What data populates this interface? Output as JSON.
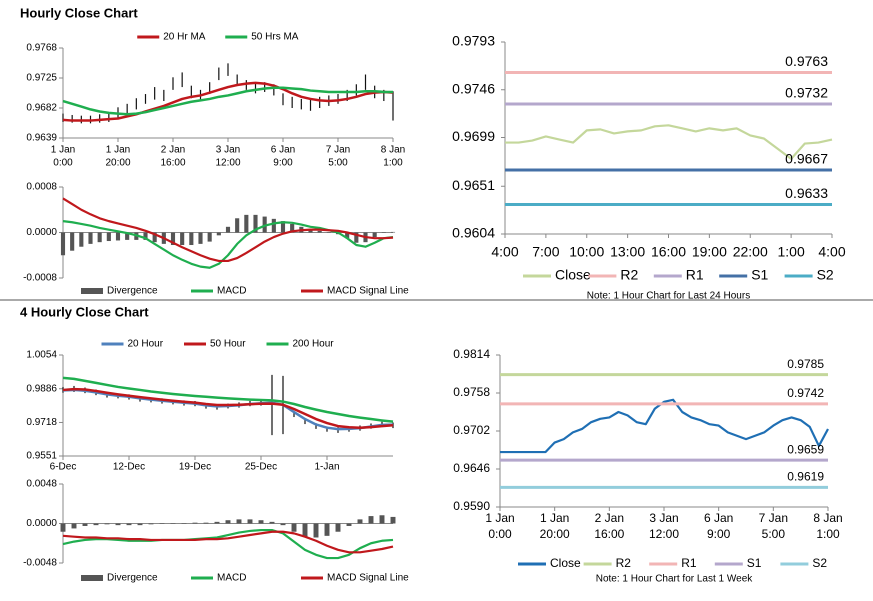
{
  "chart_data": [
    {
      "type": "price",
      "title": "Hourly Close Chart",
      "ylim": [
        0.9639,
        0.9768
      ],
      "yticks": [
        0.9639,
        0.9682,
        0.9725,
        0.9768
      ],
      "categories": [
        [
          "1 Jan",
          "0:00"
        ],
        null,
        null,
        null,
        null,
        null,
        [
          "1 Jan",
          "20:00"
        ],
        null,
        null,
        null,
        null,
        null,
        [
          "2 Jan",
          "16:00"
        ],
        null,
        null,
        null,
        null,
        null,
        [
          "3 Jan",
          "12:00"
        ],
        null,
        null,
        null,
        null,
        null,
        [
          "6 Jan",
          "9:00"
        ],
        null,
        null,
        null,
        null,
        null,
        [
          "7 Jan",
          "5:00"
        ],
        null,
        null,
        null,
        null,
        null,
        [
          "8 Jan",
          "1:00"
        ]
      ],
      "high": [
        0.9674,
        0.9672,
        0.9671,
        0.9671,
        0.9673,
        0.9674,
        0.9683,
        0.9688,
        0.9696,
        0.9702,
        0.9712,
        0.9708,
        0.9726,
        0.9733,
        0.9714,
        0.9708,
        0.9719,
        0.974,
        0.9746,
        0.973,
        0.9722,
        0.9718,
        0.9719,
        0.9716,
        0.9703,
        0.9698,
        0.9695,
        0.9694,
        0.9698,
        0.97,
        0.9702,
        0.9708,
        0.9716,
        0.973,
        0.9714,
        0.9708,
        0.9706
      ],
      "low": [
        0.9662,
        0.9661,
        0.966,
        0.966,
        0.9661,
        0.9662,
        0.9668,
        0.9672,
        0.968,
        0.9688,
        0.9694,
        0.9692,
        0.9708,
        0.9712,
        0.9696,
        0.9692,
        0.9702,
        0.9722,
        0.9728,
        0.9714,
        0.9708,
        0.9703,
        0.9705,
        0.97,
        0.9686,
        0.9682,
        0.968,
        0.9678,
        0.9682,
        0.9685,
        0.9688,
        0.9692,
        0.97,
        0.9708,
        0.9696,
        0.9692,
        0.9664
      ],
      "series": [
        {
          "name": "20 Hr MA",
          "color": "#c0181c",
          "values": [
            0.9665,
            0.9664,
            0.9664,
            0.9664,
            0.9665,
            0.9666,
            0.9667,
            0.967,
            0.9673,
            0.9677,
            0.9681,
            0.9685,
            0.969,
            0.9695,
            0.9698,
            0.97,
            0.9704,
            0.9708,
            0.9712,
            0.9715,
            0.9717,
            0.9718,
            0.9717,
            0.9714,
            0.9709,
            0.9703,
            0.9698,
            0.9695,
            0.9693,
            0.9692,
            0.9693,
            0.9695,
            0.9698,
            0.9702,
            0.9704,
            0.9705,
            0.9704
          ]
        },
        {
          "name": "50 Hrs MA",
          "color": "#1fae4f",
          "values": [
            0.9692,
            0.9688,
            0.9684,
            0.968,
            0.9677,
            0.9675,
            0.9674,
            0.9673,
            0.9674,
            0.9676,
            0.9679,
            0.9682,
            0.9685,
            0.9688,
            0.9691,
            0.9693,
            0.9695,
            0.9698,
            0.97,
            0.9703,
            0.9706,
            0.9708,
            0.971,
            0.9711,
            0.9711,
            0.971,
            0.9709,
            0.9707,
            0.9706,
            0.9705,
            0.9705,
            0.9705,
            0.9705,
            0.9706,
            0.9706,
            0.9705,
            0.9705
          ]
        }
      ]
    },
    {
      "type": "macd",
      "ylim": [
        -0.0008,
        0.0008
      ],
      "yticks": [
        -0.0008,
        {
          "value": 0,
          "label": "0.0000"
        },
        0.0008
      ],
      "series": [
        {
          "name": "Divergence",
          "color": "#555555",
          "style": "bar",
          "values": [
            -0.0004,
            -0.00032,
            -0.00025,
            -0.0002,
            -0.00017,
            -0.00015,
            -0.00014,
            -0.00013,
            -0.00013,
            -0.00013,
            -0.00017,
            -0.0002,
            -0.00022,
            -0.00022,
            -0.00022,
            -0.0002,
            -0.00016,
            -5e-05,
            0.0001,
            0.00025,
            0.00031,
            0.00031,
            0.00028,
            0.00024,
            0.0002,
            0.00015,
            0.0001,
            5e-05,
            3e-05,
            0,
            -3e-05,
            -0.0001,
            -0.00018,
            -0.00017,
            -8e-05,
            0,
            1e-05
          ]
        },
        {
          "name": "MACD",
          "color": "#1fae4f",
          "values": [
            0.0002,
            0.00018,
            0.00015,
            0.00012,
            8e-05,
            5e-05,
            2e-05,
            -1e-05,
            -5e-05,
            -0.0001,
            -0.0002,
            -0.0003,
            -0.0004,
            -0.00048,
            -0.00055,
            -0.0006,
            -0.00062,
            -0.00055,
            -0.0004,
            -0.0002,
            -5e-05,
            5e-05,
            0.00012,
            0.00016,
            0.00018,
            0.00017,
            0.00014,
            0.0001,
            8e-05,
            4e-05,
            0,
            -0.0001,
            -0.00022,
            -0.00025,
            -0.00018,
            -0.0001,
            -8e-05
          ]
        },
        {
          "name": "MACD Signal Line",
          "color": "#c0181c",
          "values": [
            0.0006,
            0.0005,
            0.0004,
            0.00032,
            0.00025,
            0.0002,
            0.00016,
            0.00012,
            8e-05,
            3e-05,
            -3e-05,
            -0.0001,
            -0.00018,
            -0.00026,
            -0.00033,
            -0.0004,
            -0.00046,
            -0.0005,
            -0.0005,
            -0.00045,
            -0.00036,
            -0.00026,
            -0.00016,
            -8e-05,
            -2e-05,
            2e-05,
            4e-05,
            5e-05,
            5e-05,
            4e-05,
            3e-05,
            0,
            -4e-05,
            -8e-05,
            -0.0001,
            -0.0001,
            -9e-05
          ]
        }
      ]
    },
    {
      "type": "levels",
      "ylim": [
        0.9604,
        0.9793
      ],
      "yticks": [
        0.9604,
        0.9651,
        0.9699,
        0.9746,
        0.9793
      ],
      "categories": [
        "4:00",
        null,
        null,
        "7:00",
        null,
        null,
        "10:00",
        null,
        null,
        "13:00",
        null,
        null,
        "16:00",
        null,
        null,
        "19:00",
        null,
        null,
        "22:00",
        null,
        null,
        "1:00",
        null,
        null,
        "4:00"
      ],
      "series": [
        {
          "name": "Close",
          "color": "#c4d79b",
          "values": [
            0.9694,
            0.9694,
            0.9696,
            0.97,
            0.9697,
            0.9694,
            0.9706,
            0.9707,
            0.9703,
            0.9705,
            0.9706,
            0.971,
            0.9711,
            0.9708,
            0.9705,
            0.9708,
            0.9706,
            0.9708,
            0.9701,
            0.9698,
            0.9688,
            0.9678,
            0.9693,
            0.9694,
            0.9697
          ]
        }
      ],
      "levels": [
        {
          "name": "R2",
          "color": "#f2b5b5",
          "value": 0.9763
        },
        {
          "name": "R1",
          "color": "#b4a7cc",
          "value": 0.9732
        },
        {
          "name": "S1",
          "color": "#4470a6",
          "value": 0.9667
        },
        {
          "name": "S2",
          "color": "#4bacc6",
          "value": 0.9633
        }
      ],
      "note": "Note: 1 Hour Chart for Last 24 Hours"
    },
    {
      "type": "price",
      "title": "4 Hourly Close Chart",
      "ylim": [
        0.9551,
        1.0054
      ],
      "yticks": [
        0.9551,
        0.9718,
        0.9886,
        1.0054
      ],
      "categories": [
        "6-Dec",
        null,
        null,
        null,
        null,
        null,
        "12-Dec",
        null,
        null,
        null,
        null,
        null,
        "19-Dec",
        null,
        null,
        null,
        null,
        null,
        "25-Dec",
        null,
        null,
        null,
        null,
        null,
        "1-Jan",
        null,
        null,
        null,
        null,
        null,
        null
      ],
      "high": [
        0.9895,
        0.99,
        0.9892,
        0.9882,
        0.9868,
        0.9862,
        0.9858,
        0.9848,
        0.9842,
        0.9838,
        0.9832,
        0.9828,
        0.9825,
        0.9813,
        0.9808,
        0.9812,
        0.9818,
        0.9825,
        0.9828,
        0.9955,
        0.995,
        0.9775,
        0.974,
        0.9714,
        0.9698,
        0.9694,
        0.9698,
        0.9703,
        0.9713,
        0.9722,
        0.9718
      ],
      "low": [
        0.9866,
        0.987,
        0.9864,
        0.9854,
        0.9842,
        0.9838,
        0.9832,
        0.9822,
        0.9818,
        0.9812,
        0.9808,
        0.9802,
        0.9799,
        0.9787,
        0.9782,
        0.9788,
        0.9792,
        0.9799,
        0.9802,
        0.9655,
        0.966,
        0.9745,
        0.971,
        0.9686,
        0.9672,
        0.9666,
        0.9672,
        0.9677,
        0.9687,
        0.9698,
        0.969
      ],
      "series": [
        {
          "name": "20 Hour",
          "color": "#4f81bd",
          "values": [
            0.9878,
            0.988,
            0.9876,
            0.9868,
            0.9858,
            0.9851,
            0.9846,
            0.9838,
            0.9832,
            0.9826,
            0.9821,
            0.9816,
            0.9812,
            0.9803,
            0.9798,
            0.98,
            0.9804,
            0.981,
            0.9814,
            0.9816,
            0.9806,
            0.977,
            0.9735,
            0.9708,
            0.9692,
            0.9685,
            0.9686,
            0.969,
            0.9698,
            0.9706,
            0.9707
          ]
        },
        {
          "name": "50 Hour",
          "color": "#c0181c",
          "values": [
            0.988,
            0.9884,
            0.9882,
            0.9875,
            0.9866,
            0.9858,
            0.9851,
            0.9844,
            0.9838,
            0.9832,
            0.9826,
            0.9821,
            0.9817,
            0.981,
            0.9805,
            0.9805,
            0.9806,
            0.9809,
            0.9811,
            0.9812,
            0.9806,
            0.9785,
            0.976,
            0.9735,
            0.9715,
            0.97,
            0.9694,
            0.9692,
            0.9695,
            0.97,
            0.9704
          ]
        },
        {
          "name": "200 Hour",
          "color": "#1fae4f",
          "values": [
            0.994,
            0.9935,
            0.9925,
            0.9915,
            0.9905,
            0.9895,
            0.9887,
            0.988,
            0.9872,
            0.9866,
            0.986,
            0.9855,
            0.985,
            0.9846,
            0.9842,
            0.9838,
            0.9835,
            0.9832,
            0.983,
            0.9828,
            0.9822,
            0.981,
            0.9795,
            0.9782,
            0.977,
            0.976,
            0.975,
            0.9742,
            0.9735,
            0.9728,
            0.9722
          ]
        }
      ]
    },
    {
      "type": "macd",
      "ylim": [
        -0.0048,
        0.0048
      ],
      "yticks": [
        -0.0048,
        {
          "value": 0,
          "label": "0.0000"
        },
        0.0048
      ],
      "series": [
        {
          "name": "Divergence",
          "color": "#555555",
          "style": "bar",
          "values": [
            -0.001,
            -0.0006,
            -0.0003,
            -0.0002,
            -0.0001,
            -0.0002,
            -0.0002,
            -0.0002,
            -0.0001,
            0,
            0,
            0,
            0.0001,
            0.0001,
            0.0002,
            0.0004,
            0.0005,
            0.0005,
            0.0004,
            0.0002,
            -0.0002,
            -0.001,
            -0.0016,
            -0.0017,
            -0.0015,
            -0.001,
            -0.0003,
            0.0005,
            0.0009,
            0.001,
            0.0008
          ]
        },
        {
          "name": "MACD",
          "color": "#1fae4f",
          "values": [
            -0.0025,
            -0.0022,
            -0.002,
            -0.0019,
            -0.0019,
            -0.002,
            -0.0021,
            -0.0021,
            -0.0021,
            -0.002,
            -0.002,
            -0.002,
            -0.0019,
            -0.0018,
            -0.0017,
            -0.0014,
            -0.0011,
            -0.0009,
            -0.0008,
            -0.0008,
            -0.0012,
            -0.0022,
            -0.0032,
            -0.0038,
            -0.0042,
            -0.0042,
            -0.0038,
            -0.003,
            -0.0024,
            -0.0021,
            -0.002
          ]
        },
        {
          "name": "MACD Signal Line",
          "color": "#c0181c",
          "values": [
            -0.0015,
            -0.0016,
            -0.0017,
            -0.0017,
            -0.0018,
            -0.0018,
            -0.0019,
            -0.0019,
            -0.002,
            -0.002,
            -0.002,
            -0.002,
            -0.002,
            -0.0019,
            -0.0019,
            -0.0018,
            -0.0016,
            -0.0014,
            -0.0012,
            -0.001,
            -0.001,
            -0.0012,
            -0.0016,
            -0.0021,
            -0.0027,
            -0.0032,
            -0.0035,
            -0.0035,
            -0.0033,
            -0.0031,
            -0.0028
          ]
        }
      ]
    },
    {
      "type": "levels",
      "ylim": [
        0.959,
        0.9814
      ],
      "yticks": [
        {
          "value": 0.959,
          "label": "0.9590"
        },
        0.9646,
        0.9702,
        0.9758,
        0.9814
      ],
      "categories": [
        [
          "1 Jan",
          "0:00"
        ],
        null,
        null,
        null,
        null,
        null,
        [
          "1 Jan",
          "20:00"
        ],
        null,
        null,
        null,
        null,
        null,
        [
          "2 Jan",
          "16:00"
        ],
        null,
        null,
        null,
        null,
        null,
        [
          "3 Jan",
          "12:00"
        ],
        null,
        null,
        null,
        null,
        null,
        [
          "6 Jan",
          "9:00"
        ],
        null,
        null,
        null,
        null,
        null,
        [
          "7 Jan",
          "5:00"
        ],
        null,
        null,
        null,
        null,
        null,
        [
          "8 Jan",
          "1:00"
        ]
      ],
      "series": [
        {
          "name": "Close",
          "color": "#1f6fb4",
          "values": [
            0.9671,
            0.9671,
            0.9671,
            0.9671,
            0.9671,
            0.9671,
            0.9685,
            0.969,
            0.97,
            0.9705,
            0.9715,
            0.972,
            0.9722,
            0.973,
            0.9725,
            0.9715,
            0.9712,
            0.9735,
            0.9745,
            0.9748,
            0.973,
            0.9722,
            0.9718,
            0.9712,
            0.971,
            0.97,
            0.9695,
            0.969,
            0.9695,
            0.97,
            0.971,
            0.9718,
            0.9722,
            0.9718,
            0.9708,
            0.968,
            0.9705
          ]
        }
      ],
      "levels": [
        {
          "name": "R2",
          "color": "#c4d79b",
          "value": 0.9785
        },
        {
          "name": "R1",
          "color": "#f2b5b5",
          "value": 0.9742
        },
        {
          "name": "S1",
          "color": "#b4a7cc",
          "value": 0.9659
        },
        {
          "name": "S2",
          "color": "#92cddc",
          "value": 0.9619
        }
      ],
      "note": "Note: 1 Hour Chart for Last 1 Week"
    }
  ]
}
